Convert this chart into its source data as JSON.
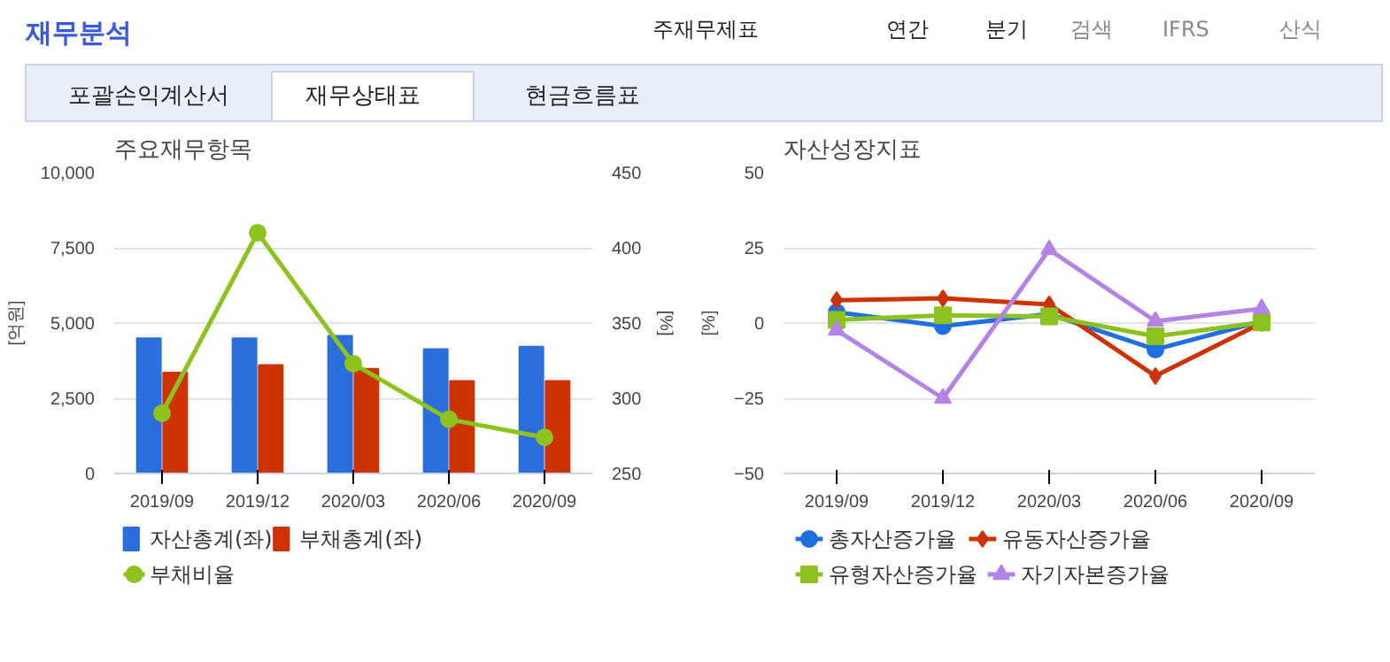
{
  "chart_data": [
    {
      "type": "other",
      "title": "재무분석",
      "annotations": [
        "주재무제표",
        "연간",
        "분기",
        "검색",
        "IFRS",
        "산식",
        "포괄손익계산서",
        "재무상태표",
        "현금흐름표"
      ]
    },
    {
      "type": "bar",
      "title": "주요재무항목",
      "ylabel": "[억원]",
      "y2label": "[%]",
      "categories": [
        "2019/09",
        "2019/12",
        "2020/03",
        "2020/06",
        "2020/09"
      ],
      "series": [
        {
          "name": "자산총계(좌)",
          "color": "#2a6edb",
          "values": [
            4490,
            4490,
            4570,
            4130,
            4210
          ]
        },
        {
          "name": "부채총계(좌)",
          "color": "#cc3300",
          "values": [
            3350,
            3600,
            3480,
            3070,
            3070
          ]
        },
        {
          "name": "부채비율",
          "color": "#8dc21f",
          "type": "line",
          "axis": "y2",
          "marker": "circle",
          "values": [
            290,
            410,
            323,
            286,
            274
          ]
        }
      ],
      "ylim": [
        0,
        10000
      ],
      "yticks": [
        0,
        {
          "value": 2500,
          "label": "2,500"
        },
        {
          "value": 5000,
          "label": "5,000"
        },
        {
          "value": 7500,
          "label": "7,500"
        },
        {
          "value": 10000,
          "label": "10,000"
        }
      ],
      "y2lim": [
        250,
        450
      ],
      "y2ticks": [
        250,
        300,
        350,
        400,
        450
      ],
      "grid": "y",
      "legend": "bottom"
    },
    {
      "type": "line",
      "title": "자산성장지표",
      "ylabel": "[%]",
      "categories": [
        "2019/09",
        "2019/12",
        "2020/03",
        "2020/06",
        "2020/09"
      ],
      "series": [
        {
          "name": "총자산증가율",
          "color": "#1f6fe0",
          "marker": "circle",
          "values": [
            3.6,
            -1,
            3,
            -8.8,
            0.6
          ]
        },
        {
          "name": "유동자산증가율",
          "color": "#cc3300",
          "marker": "diamond",
          "values": [
            7.6,
            8.2,
            6.2,
            -17.6,
            0
          ]
        },
        {
          "name": "유형자산증가율",
          "color": "#8cc21e",
          "marker": "square",
          "values": [
            1,
            2.6,
            2.2,
            -4.4,
            0.2
          ]
        },
        {
          "name": "자기자본증가율",
          "color": "#b483e6",
          "marker": "triangle",
          "values": [
            -2.4,
            -25,
            24.4,
            0.6,
            4.8
          ]
        }
      ],
      "ylim": [
        -50,
        50
      ],
      "yticks": [
        -50,
        -25,
        0,
        25,
        50
      ],
      "grid": "y",
      "legend": "bottom"
    }
  ]
}
